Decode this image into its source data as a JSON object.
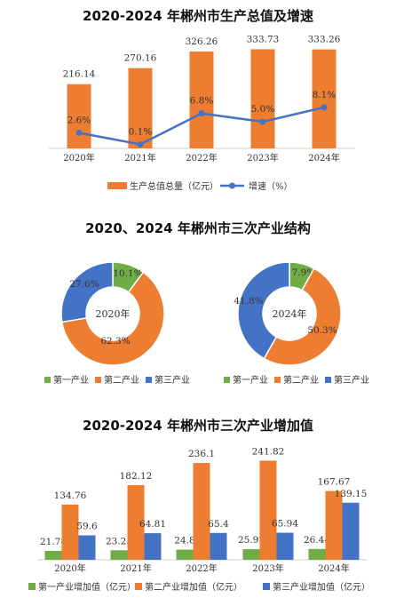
{
  "chart_data": [
    {
      "type": "bar",
      "title": "2020-2024 年郴州市生产总值及增速",
      "categories": [
        "2020年",
        "2021年",
        "2022年",
        "2023年",
        "2024年"
      ],
      "series": [
        {
          "name": "生产总值总量（亿元）",
          "kind": "bar",
          "values": [
            216.14,
            270.16,
            326.26,
            333.73,
            333.26
          ],
          "color": "#ED7D31"
        },
        {
          "name": "增速（%）",
          "kind": "line",
          "values": [
            2.6,
            0.1,
            6.8,
            5.0,
            8.1
          ],
          "labels": [
            "2.6%",
            "0.1%",
            "6.8%",
            "5.0%",
            "8.1%"
          ],
          "color": "#4472C4"
        }
      ],
      "legend": "bottom"
    },
    {
      "type": "pie",
      "title": "2020、2024 年郴州市三次产业结构",
      "charts": [
        {
          "center_label": "2020年",
          "values": [
            10.1,
            62.3,
            27.6
          ],
          "labels": [
            "10.1%",
            "62.3%",
            "27.6%"
          ]
        },
        {
          "center_label": "2024年",
          "values": [
            7.9,
            50.3,
            41.8
          ],
          "labels": [
            "7.9%",
            "50.3%",
            "41.8%"
          ]
        }
      ],
      "categories": [
        "第一产业",
        "第二产业",
        "第三产业"
      ],
      "colors": [
        "#70AD47",
        "#ED7D31",
        "#4472C4"
      ],
      "legend": "bottom"
    },
    {
      "type": "bar",
      "title": "2020-2024 年郴州市三次产业增加值",
      "categories": [
        "2020年",
        "2021年",
        "2022年",
        "2023年",
        "2024年"
      ],
      "series": [
        {
          "name": "第一产业增加值（亿元）",
          "values": [
            21.78,
            23.23,
            24.8,
            25.97,
            26.44
          ],
          "labels": [
            "21.78",
            "23.23",
            "24.8",
            "25.97",
            "26.44"
          ],
          "color": "#70AD47"
        },
        {
          "name": "第二产业增加值（亿元）",
          "values": [
            134.76,
            182.12,
            236.1,
            241.82,
            167.67
          ],
          "labels": [
            "134.76",
            "182.12",
            "236.1",
            "241.82",
            "167.67"
          ],
          "color": "#ED7D31"
        },
        {
          "name": "第三产业增加值（亿元）",
          "values": [
            59.6,
            64.81,
            65.4,
            65.94,
            139.15
          ],
          "labels": [
            "59.6",
            "64.81",
            "65.4",
            "65.94",
            "139.15"
          ],
          "color": "#4472C4"
        }
      ],
      "legend": "bottom"
    }
  ]
}
